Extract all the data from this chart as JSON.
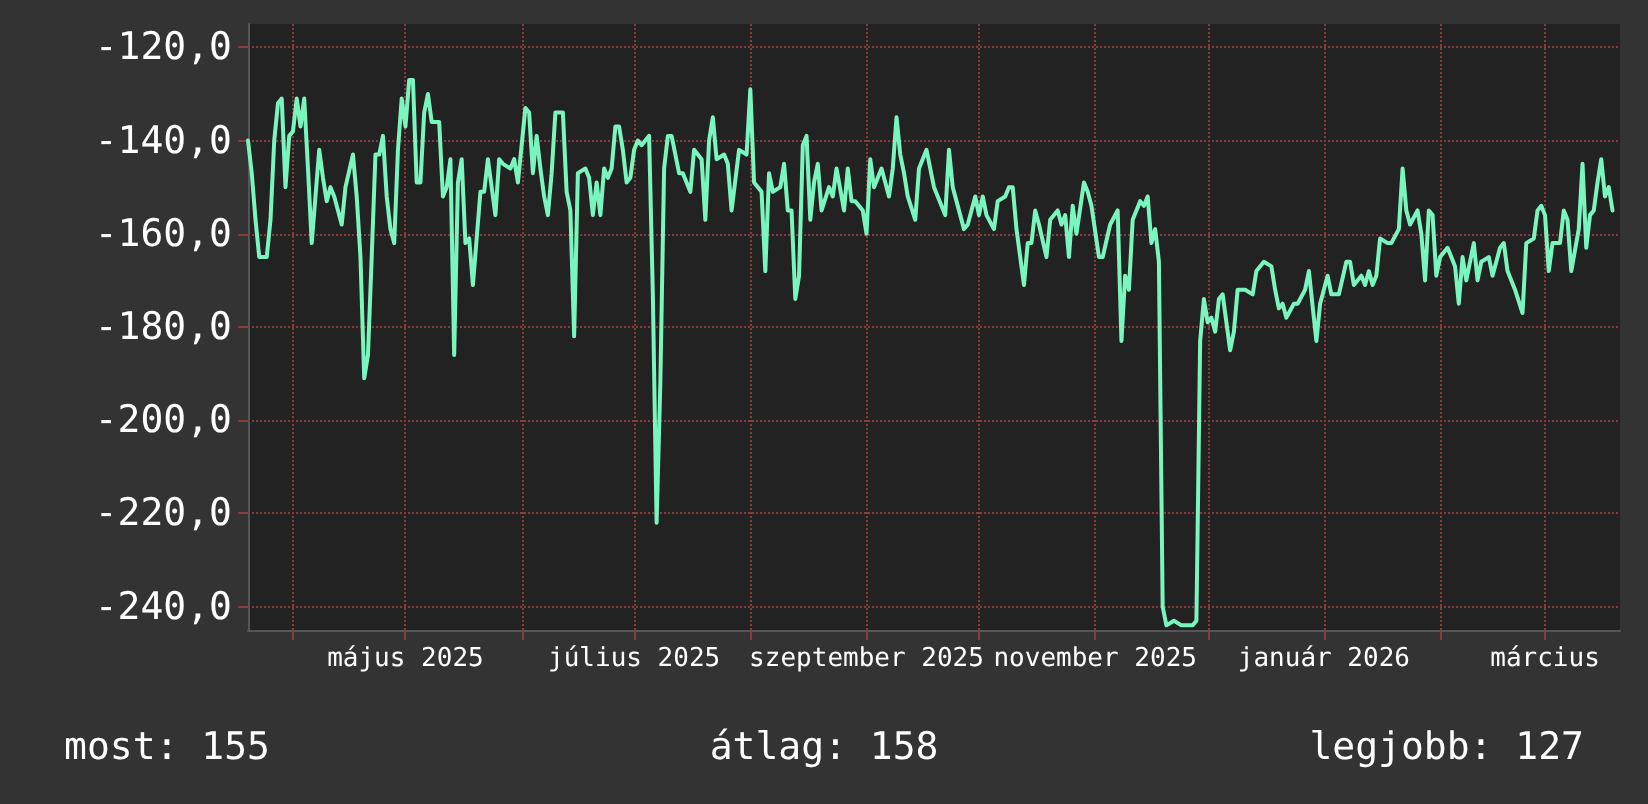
{
  "chart_data": {
    "type": "line",
    "x": [
      "2025-03-20",
      "2025-03-21",
      "2025-03-22",
      "2025-03-23",
      "2025-03-25",
      "2025-03-26",
      "2025-03-27",
      "2025-03-28",
      "2025-03-29",
      "2025-03-30",
      "2025-03-31",
      "2025-04-01",
      "2025-04-02",
      "2025-04-03",
      "2025-04-04",
      "2025-04-05",
      "2025-04-06",
      "2025-04-08",
      "2025-04-09",
      "2025-04-10",
      "2025-04-11",
      "2025-04-12",
      "2025-04-14",
      "2025-04-15",
      "2025-04-17",
      "2025-04-18",
      "2025-04-19",
      "2025-04-20",
      "2025-04-21",
      "2025-04-22",
      "2025-04-23",
      "2025-04-24",
      "2025-04-25",
      "2025-04-26",
      "2025-04-27",
      "2025-04-28",
      "2025-04-29",
      "2025-04-30",
      "2025-05-01",
      "2025-05-02",
      "2025-05-03",
      "2025-05-04",
      "2025-05-05",
      "2025-05-06",
      "2025-05-07",
      "2025-05-08",
      "2025-05-10",
      "2025-05-11",
      "2025-05-12",
      "2025-05-13",
      "2025-05-14",
      "2025-05-15",
      "2025-05-16",
      "2025-05-17",
      "2025-05-18",
      "2025-05-19",
      "2025-05-21",
      "2025-05-22",
      "2025-05-23",
      "2025-05-25",
      "2025-05-26",
      "2025-05-27",
      "2025-05-29",
      "2025-05-30",
      "2025-05-31",
      "2025-06-01",
      "2025-06-02",
      "2025-06-03",
      "2025-06-04",
      "2025-06-05",
      "2025-06-06",
      "2025-06-07",
      "2025-06-08",
      "2025-06-09",
      "2025-06-10",
      "2025-06-12",
      "2025-06-13",
      "2025-06-14",
      "2025-06-15",
      "2025-06-16",
      "2025-06-18",
      "2025-06-19",
      "2025-06-20",
      "2025-06-21",
      "2025-06-22",
      "2025-06-23",
      "2025-06-24",
      "2025-06-25",
      "2025-06-26",
      "2025-06-27",
      "2025-06-28",
      "2025-06-29",
      "2025-06-30",
      "2025-07-01",
      "2025-07-02",
      "2025-07-03",
      "2025-07-05",
      "2025-07-06",
      "2025-07-07",
      "2025-07-08",
      "2025-07-09",
      "2025-07-10",
      "2025-07-11",
      "2025-07-13",
      "2025-07-14",
      "2025-07-16",
      "2025-07-17",
      "2025-07-19",
      "2025-07-20",
      "2025-07-21",
      "2025-07-22",
      "2025-07-23",
      "2025-07-25",
      "2025-07-26",
      "2025-07-27",
      "2025-07-29",
      "2025-07-31",
      "2025-08-01",
      "2025-08-02",
      "2025-08-04",
      "2025-08-05",
      "2025-08-06",
      "2025-08-07",
      "2025-08-09",
      "2025-08-10",
      "2025-08-11",
      "2025-08-12",
      "2025-08-13",
      "2025-08-14",
      "2025-08-15",
      "2025-08-16",
      "2025-08-17",
      "2025-08-18",
      "2025-08-19",
      "2025-08-20",
      "2025-08-22",
      "2025-08-23",
      "2025-08-24",
      "2025-08-26",
      "2025-08-27",
      "2025-08-28",
      "2025-08-29",
      "2025-08-31",
      "2025-09-01",
      "2025-09-02",
      "2025-09-03",
      "2025-09-05",
      "2025-09-06",
      "2025-09-07",
      "2025-09-08",
      "2025-09-09",
      "2025-09-10",
      "2025-09-11",
      "2025-09-12",
      "2025-09-14",
      "2025-09-15",
      "2025-09-17",
      "2025-09-19",
      "2025-09-20",
      "2025-09-22",
      "2025-09-23",
      "2025-09-24",
      "2025-09-25",
      "2025-09-27",
      "2025-09-28",
      "2025-09-30",
      "2025-10-01",
      "2025-10-02",
      "2025-10-03",
      "2025-10-05",
      "2025-10-06",
      "2025-10-08",
      "2025-10-09",
      "2025-10-10",
      "2025-10-11",
      "2025-10-13",
      "2025-10-14",
      "2025-10-15",
      "2025-10-16",
      "2025-10-17",
      "2025-10-19",
      "2025-10-20",
      "2025-10-22",
      "2025-10-23",
      "2025-10-24",
      "2025-10-25",
      "2025-10-26",
      "2025-10-27",
      "2025-10-29",
      "2025-10-30",
      "2025-10-31",
      "2025-11-02",
      "2025-11-03",
      "2025-11-05",
      "2025-11-07",
      "2025-11-08",
      "2025-11-09",
      "2025-11-10",
      "2025-11-11",
      "2025-11-13",
      "2025-11-14",
      "2025-11-15",
      "2025-11-16",
      "2025-11-17",
      "2025-11-18",
      "2025-11-19",
      "2025-11-20",
      "2025-11-22",
      "2025-11-24",
      "2025-11-27",
      "2025-11-28",
      "2025-11-29",
      "2025-11-30",
      "2025-12-01",
      "2025-12-02",
      "2025-12-03",
      "2025-12-04",
      "2025-12-05",
      "2025-12-07",
      "2025-12-08",
      "2025-12-09",
      "2025-12-11",
      "2025-12-13",
      "2025-12-14",
      "2025-12-16",
      "2025-12-18",
      "2025-12-19",
      "2025-12-20",
      "2025-12-21",
      "2025-12-22",
      "2025-12-24",
      "2025-12-25",
      "2025-12-27",
      "2025-12-28",
      "2025-12-30",
      "2025-12-31",
      "2026-01-01",
      "2026-01-02",
      "2026-01-03",
      "2026-01-05",
      "2026-01-07",
      "2026-01-08",
      "2026-01-09",
      "2026-01-11",
      "2026-01-12",
      "2026-01-13",
      "2026-01-14",
      "2026-01-15",
      "2026-01-16",
      "2026-01-18",
      "2026-01-19",
      "2026-01-21",
      "2026-01-22",
      "2026-01-23",
      "2026-01-24",
      "2026-01-26",
      "2026-01-27",
      "2026-01-28",
      "2026-01-29",
      "2026-01-30",
      "2026-01-31",
      "2026-02-01",
      "2026-02-03",
      "2026-02-04",
      "2026-02-05",
      "2026-02-06",
      "2026-02-07",
      "2026-02-08",
      "2026-02-10",
      "2026-02-11",
      "2026-02-12",
      "2026-02-14",
      "2026-02-15",
      "2026-02-17",
      "2026-02-18",
      "2026-02-19",
      "2026-02-21",
      "2026-02-23",
      "2026-02-24",
      "2026-02-26",
      "2026-02-27",
      "2026-02-28",
      "2026-03-01",
      "2026-03-02",
      "2026-03-03",
      "2026-03-05",
      "2026-03-06",
      "2026-03-07",
      "2026-03-08",
      "2026-03-10",
      "2026-03-11",
      "2026-03-12",
      "2026-03-13",
      "2026-03-14",
      "2026-03-15",
      "2026-03-16",
      "2026-03-17",
      "2026-03-18",
      "2026-03-19"
    ],
    "series": [
      {
        "color": "#7af5be",
        "values": [
          -140,
          -147,
          -157,
          -165,
          -165,
          -157,
          -140,
          -132,
          -131,
          -150,
          -139,
          -138,
          -131,
          -137,
          -131,
          -146,
          -162,
          -142,
          -148,
          -153,
          -150,
          -152,
          -158,
          -150,
          -143,
          -152,
          -165,
          -191,
          -186,
          -165,
          -143,
          -143,
          -139,
          -152,
          -159,
          -162,
          -142,
          -131,
          -137,
          -127,
          -127,
          -149,
          -149,
          -134,
          -130,
          -136,
          -136,
          -152,
          -150,
          -144,
          -186,
          -149,
          -144,
          -162,
          -161,
          -171,
          -151,
          -151,
          -144,
          -156,
          -144,
          -145,
          -146,
          -144,
          -149,
          -141,
          -133,
          -134,
          -147,
          -139,
          -146,
          -152,
          -156,
          -147,
          -134,
          -134,
          -151,
          -155,
          -182,
          -147,
          -146,
          -148,
          -156,
          -149,
          -156,
          -146,
          -148,
          -146,
          -137,
          -137,
          -142,
          -149,
          -148,
          -142,
          -140,
          -141,
          -139,
          -173,
          -222,
          -192,
          -146,
          -139,
          -139,
          -147,
          -147,
          -151,
          -142,
          -144,
          -157,
          -140,
          -135,
          -144,
          -143,
          -145,
          -155,
          -142,
          -143,
          -129,
          -149,
          -151,
          -168,
          -147,
          -151,
          -150,
          -145,
          -155,
          -155,
          -174,
          -169,
          -141,
          -139,
          -157,
          -149,
          -145,
          -155,
          -150,
          -152,
          -146,
          -155,
          -146,
          -153,
          -153,
          -155,
          -160,
          -144,
          -150,
          -146,
          -149,
          -152,
          -146,
          -135,
          -143,
          -147,
          -152,
          -157,
          -146,
          -142,
          -150,
          -152,
          -156,
          -142,
          -150,
          -153,
          -159,
          -158,
          -152,
          -156,
          -152,
          -156,
          -159,
          -153,
          -152,
          -150,
          -150,
          -159,
          -171,
          -162,
          -162,
          -155,
          -158,
          -165,
          -157,
          -155,
          -158,
          -156,
          -165,
          -154,
          -160,
          -149,
          -151,
          -154,
          -165,
          -165,
          -158,
          -155,
          -183,
          -169,
          -172,
          -157,
          -153,
          -154,
          -152,
          -162,
          -159,
          -166,
          -240,
          -244,
          -243,
          -244,
          -244,
          -243,
          -183,
          -174,
          -179,
          -178,
          -181,
          -174,
          -173,
          -185,
          -181,
          -172,
          -172,
          -173,
          -168,
          -166,
          -167,
          -172,
          -176,
          -175,
          -178,
          -175,
          -175,
          -172,
          -168,
          -183,
          -175,
          -172,
          -169,
          -173,
          -173,
          -166,
          -166,
          -171,
          -169,
          -171,
          -168,
          -171,
          -169,
          -161,
          -162,
          -162,
          -159,
          -146,
          -155,
          -158,
          -155,
          -160,
          -170,
          -155,
          -156,
          -169,
          -165,
          -163,
          -165,
          -167,
          -175,
          -165,
          -170,
          -162,
          -170,
          -166,
          -165,
          -169,
          -163,
          -162,
          -168,
          -172,
          -177,
          -162,
          -161,
          -155,
          -154,
          -156,
          -168,
          -162,
          -162,
          -155,
          -157,
          -168,
          -159,
          -145,
          -163,
          -156,
          -155,
          -149,
          -144,
          -152,
          -150,
          -155
        ]
      }
    ],
    "xlim": [
      "2025-03-20",
      "2026-03-21"
    ],
    "xticks": [
      {
        "value": "2025-04-01",
        "label": null
      },
      {
        "value": "2025-05-01",
        "label": "május 2025"
      },
      {
        "value": "2025-06-01",
        "label": null
      },
      {
        "value": "2025-07-01",
        "label": "július 2025"
      },
      {
        "value": "2025-08-01",
        "label": null
      },
      {
        "value": "2025-09-01",
        "label": "szeptember 2025"
      },
      {
        "value": "2025-10-01",
        "label": null
      },
      {
        "value": "2025-11-01",
        "label": "november 2025"
      },
      {
        "value": "2025-12-01",
        "label": null
      },
      {
        "value": "2026-01-01",
        "label": "január 2026"
      },
      {
        "value": "2026-02-01",
        "label": null
      },
      {
        "value": "2026-03-01",
        "label": "március"
      }
    ],
    "ylim": [
      -245,
      -115
    ],
    "yticks": [
      {
        "value": -120,
        "label": "-120,0"
      },
      {
        "value": -140,
        "label": "-140,0"
      },
      {
        "value": -160,
        "label": "-160,0"
      },
      {
        "value": -180,
        "label": "-180,0"
      },
      {
        "value": -200,
        "label": "-200,0"
      },
      {
        "value": -220,
        "label": "-220,0"
      },
      {
        "value": -240,
        "label": "-240,0"
      }
    ],
    "grid": true,
    "annotations": [
      "most: 155",
      "átlag: 158",
      "legjobb: 127"
    ]
  }
}
